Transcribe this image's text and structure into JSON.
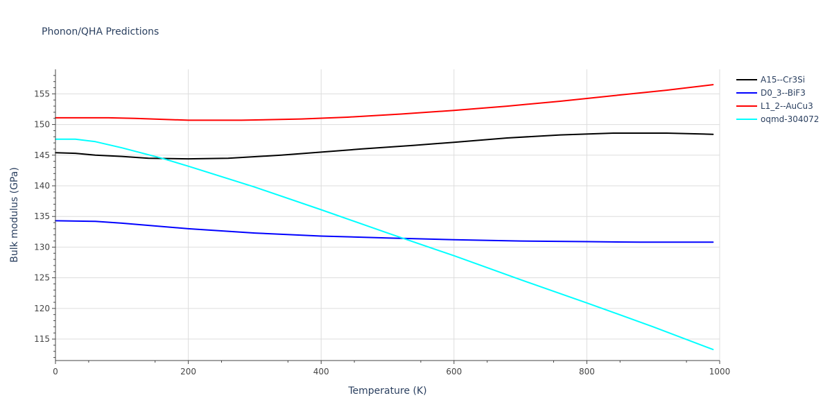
{
  "chart_data": {
    "type": "line",
    "title": "Phonon/QHA Predictions",
    "xlabel": "Temperature (K)",
    "ylabel": "Bulk modulus (GPa)",
    "xlim": [
      0,
      1000
    ],
    "ylim": [
      111.5,
      159
    ],
    "xticks": [
      0,
      200,
      400,
      600,
      800,
      1000
    ],
    "yticks": [
      115,
      120,
      125,
      130,
      135,
      140,
      145,
      150,
      155
    ],
    "grid": true,
    "legend_position": "top-right",
    "series": [
      {
        "name": "A15--Cr3Si",
        "color": "#000000",
        "x": [
          0,
          30,
          60,
          100,
          140,
          200,
          260,
          340,
          400,
          460,
          540,
          600,
          680,
          760,
          840,
          920,
          990
        ],
        "y": [
          145.4,
          145.3,
          145.0,
          144.8,
          144.5,
          144.4,
          144.5,
          145.0,
          145.5,
          146.0,
          146.6,
          147.1,
          147.8,
          148.3,
          148.6,
          148.6,
          148.4
        ]
      },
      {
        "name": "D0_3--BiF3",
        "color": "#0000ff",
        "x": [
          0,
          60,
          100,
          200,
          300,
          400,
          500,
          600,
          700,
          800,
          880,
          990
        ],
        "y": [
          134.3,
          134.2,
          133.9,
          133.0,
          132.3,
          131.8,
          131.5,
          131.2,
          131.0,
          130.9,
          130.8,
          130.8
        ]
      },
      {
        "name": "L1_2--AuCu3",
        "color": "#ff0000",
        "x": [
          0,
          80,
          120,
          200,
          280,
          370,
          440,
          520,
          600,
          680,
          760,
          840,
          920,
          990
        ],
        "y": [
          151.1,
          151.1,
          151.0,
          150.7,
          150.7,
          150.9,
          151.2,
          151.7,
          152.3,
          153.0,
          153.8,
          154.7,
          155.6,
          156.5
        ]
      },
      {
        "name": "oqmd-304072",
        "color": "#00ffff",
        "x": [
          0,
          30,
          60,
          100,
          160,
          200,
          300,
          400,
          500,
          600,
          700,
          800,
          900,
          990
        ],
        "y": [
          147.6,
          147.6,
          147.2,
          146.2,
          144.5,
          143.2,
          139.8,
          136.1,
          132.3,
          128.6,
          124.7,
          120.9,
          117.0,
          113.3
        ]
      }
    ]
  }
}
